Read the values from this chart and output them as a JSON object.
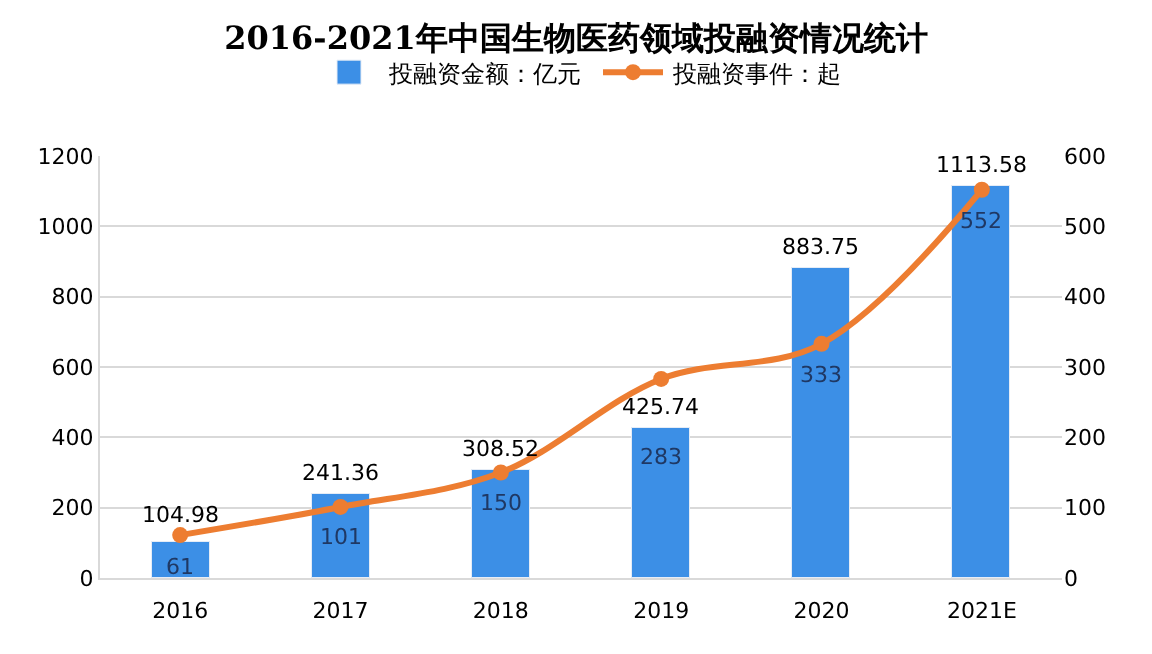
{
  "chart_data": {
    "type": "bar",
    "title": "2016-2021年中国生物医药领域投融资情况统计",
    "categories": [
      "2016",
      "2017",
      "2018",
      "2019",
      "2020",
      "2021E"
    ],
    "series": [
      {
        "name": "投融资金额：亿元",
        "color": "#3c8fe6",
        "values": [
          104.98,
          241.36,
          308.52,
          425.74,
          883.75,
          1113.58
        ]
      },
      {
        "name": "投融资事件：起",
        "type": "line",
        "axis": "y2",
        "color": "#ed7d31",
        "marker": "circle",
        "values": [
          61,
          101,
          150,
          283,
          333,
          552
        ]
      }
    ],
    "ylim": [
      0,
      1200
    ],
    "yticks": [
      0,
      200,
      400,
      600,
      800,
      1000,
      1200
    ],
    "y2lim": [
      0,
      600
    ],
    "y2ticks": [
      0,
      100,
      200,
      300,
      400,
      500,
      600
    ],
    "grid": "y",
    "legend": "top",
    "data_labels": true
  }
}
